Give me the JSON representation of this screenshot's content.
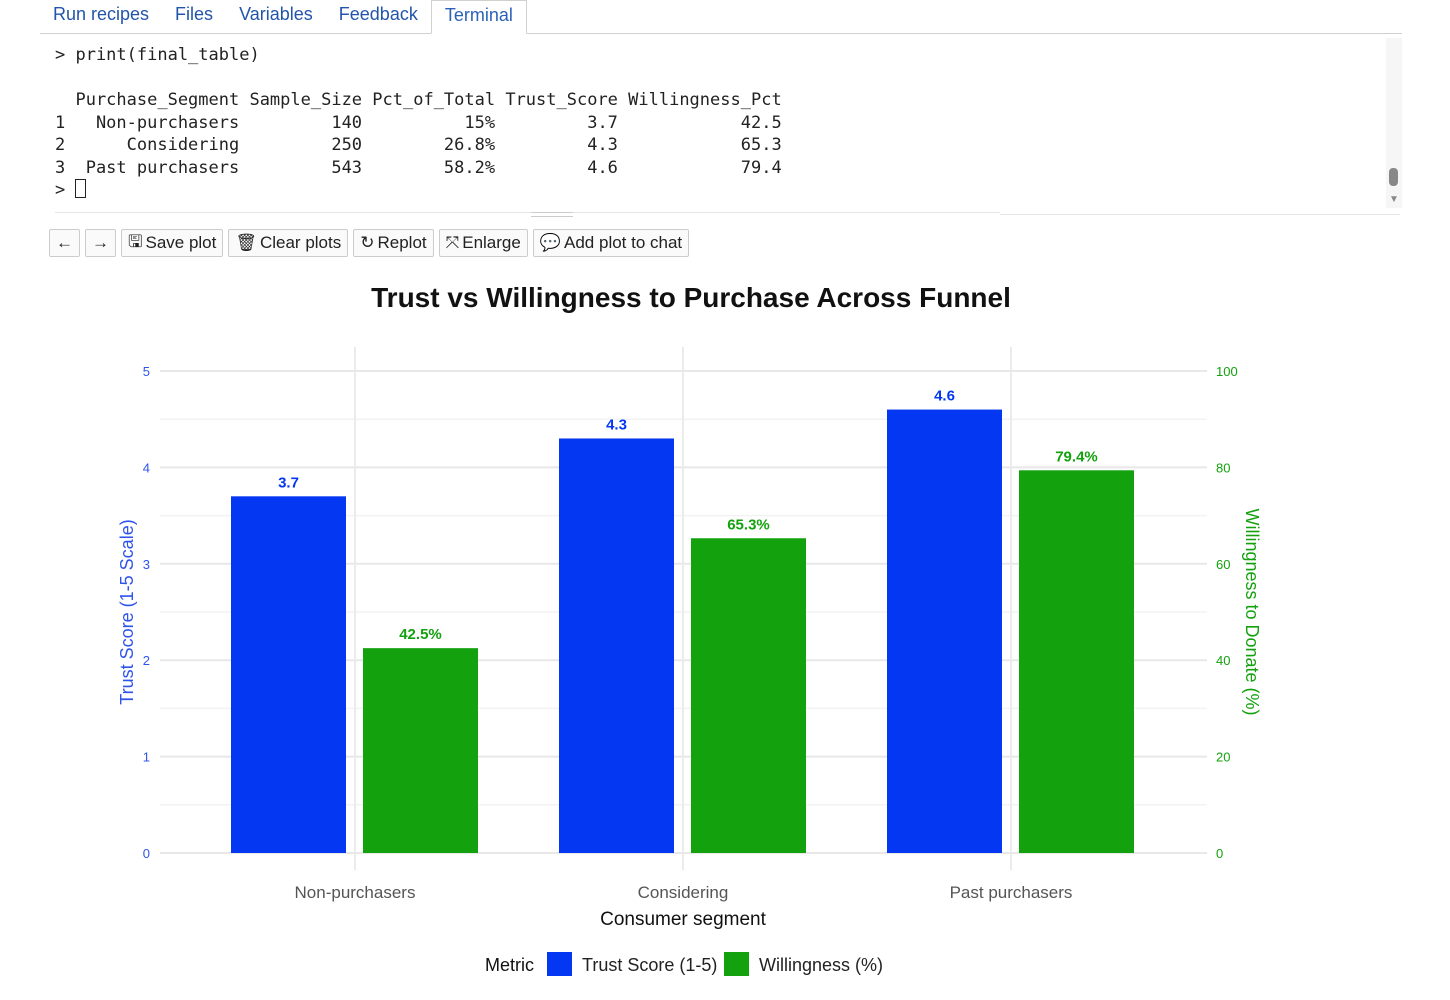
{
  "tabs": [
    {
      "label": "Run recipes"
    },
    {
      "label": "Files"
    },
    {
      "label": "Variables"
    },
    {
      "label": "Feedback"
    },
    {
      "label": "Terminal",
      "active": true
    }
  ],
  "terminal": {
    "command": "> print(final_table)",
    "header": "  Purchase_Segment Sample_Size Pct_of_Total Trust_Score Willingness_Pct",
    "rows": [
      "1   Non-purchasers         140          15%         3.7            42.5",
      "2      Considering         250        26.8%         4.3            65.3",
      "3  Past purchasers         543        58.2%         4.6            79.4"
    ],
    "prompt": "> "
  },
  "toolbar": {
    "back": "←",
    "forward": "→",
    "save": "Save plot",
    "clear": "Clear plots",
    "replot": "Replot",
    "enlarge": "Enlarge",
    "add": "Add plot to chat"
  },
  "chart_data": {
    "type": "bar",
    "title": "Trust vs Willingness to Purchase Across Funnel",
    "xlabel": "Consumer segment",
    "ylabel": "Trust Score (1-5 Scale)",
    "y2label": "Willingness to Donate (%)",
    "categories": [
      "Non-purchasers",
      "Considering",
      "Past purchasers"
    ],
    "ylim": [
      0,
      5
    ],
    "y2lim": [
      0,
      100
    ],
    "yticks": [
      "0",
      "1",
      "2",
      "3",
      "4",
      "5"
    ],
    "y2ticks": [
      "0",
      "20",
      "40",
      "60",
      "80",
      "100"
    ],
    "series": [
      {
        "name": "Trust Score (1-5)",
        "axis": "left",
        "values": [
          3.7,
          4.3,
          4.6
        ],
        "labels": [
          "3.7",
          "4.3",
          "4.6"
        ],
        "color": "#0437f2"
      },
      {
        "name": "Willingness (%)",
        "axis": "right",
        "values": [
          42.5,
          65.3,
          79.4
        ],
        "labels": [
          "42.5%",
          "65.3%",
          "79.4%"
        ],
        "color": "#13a10e"
      }
    ],
    "legend": {
      "title": "Metric",
      "position": "bottom"
    },
    "grid": true
  }
}
